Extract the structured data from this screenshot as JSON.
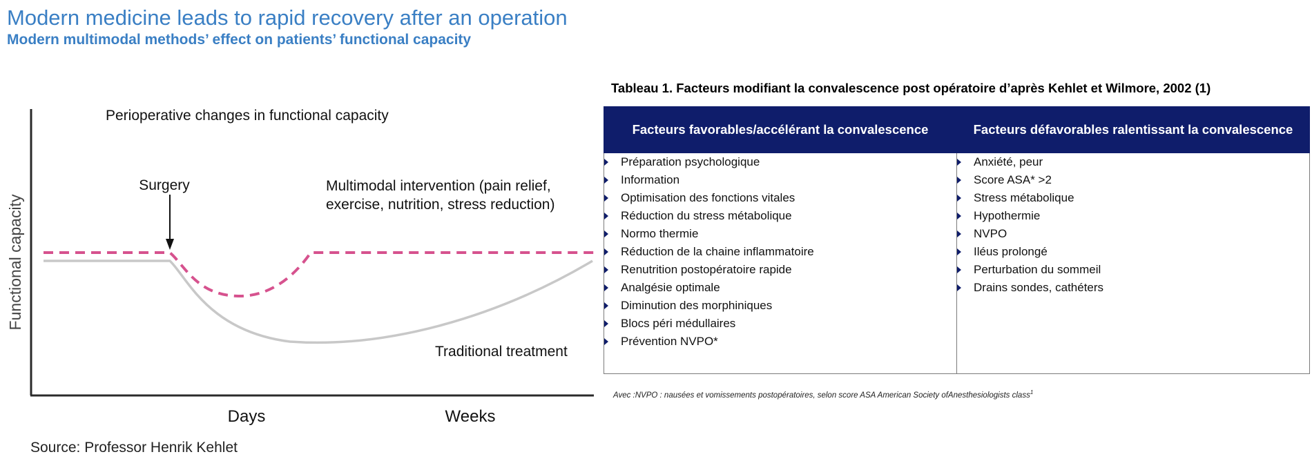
{
  "header": {
    "title": "Modern medicine leads to rapid recovery after an operation",
    "subtitle": "Modern multimodal methods’ effect on patients’ functional capacity"
  },
  "diagram": {
    "heading": "Perioperative changes in functional capacity",
    "y_axis_label": "Functional capacity",
    "x_labels": [
      "Days",
      "Weeks"
    ],
    "surgery_label": "Surgery",
    "multimodal_label_lines": [
      "Multimodal intervention (pain relief,",
      "exercise, nutrition, stress reduction)"
    ],
    "traditional_label": "Traditional treatment",
    "colors": {
      "multimodal_curve": "#d6528e",
      "traditional_curve": "#c8c8c8",
      "axis": "#2a2a2a"
    }
  },
  "source": "Source: Professor Henrik Kehlet",
  "table": {
    "caption": "Tableau 1. Facteurs modifiant la convalescence post opératoire d’après Kehlet et Wilmore, 2002 (1)",
    "header_color": "#0f1d6b",
    "columns": [
      {
        "header": "Facteurs favorables/accélérant la convalescence",
        "items": [
          "Préparation psychologique",
          "Information",
          "Optimisation des fonctions vitales",
          "Réduction du stress métabolique",
          "Normo thermie",
          "Réduction de la chaine inflammatoire",
          "Renutrition postopératoire rapide",
          "Analgésie optimale",
          "Diminution des morphiniques",
          "Blocs péri médullaires",
          "Prévention NVPO*"
        ]
      },
      {
        "header": "Facteurs défavorables ralentissant la convalescence",
        "items": [
          "Anxiété, peur",
          "Score ASA* >2",
          "Stress métabolique",
          "Hypothermie",
          "NVPO",
          "Iléus prolongé",
          "Perturbation du sommeil",
          "Drains sondes, cathéters"
        ]
      }
    ],
    "footnote": "Avec :NVPO : nausées et vomissements postopératoires, selon score ASA American Society ofAnesthesiologists class",
    "footnote_sup": "1"
  }
}
